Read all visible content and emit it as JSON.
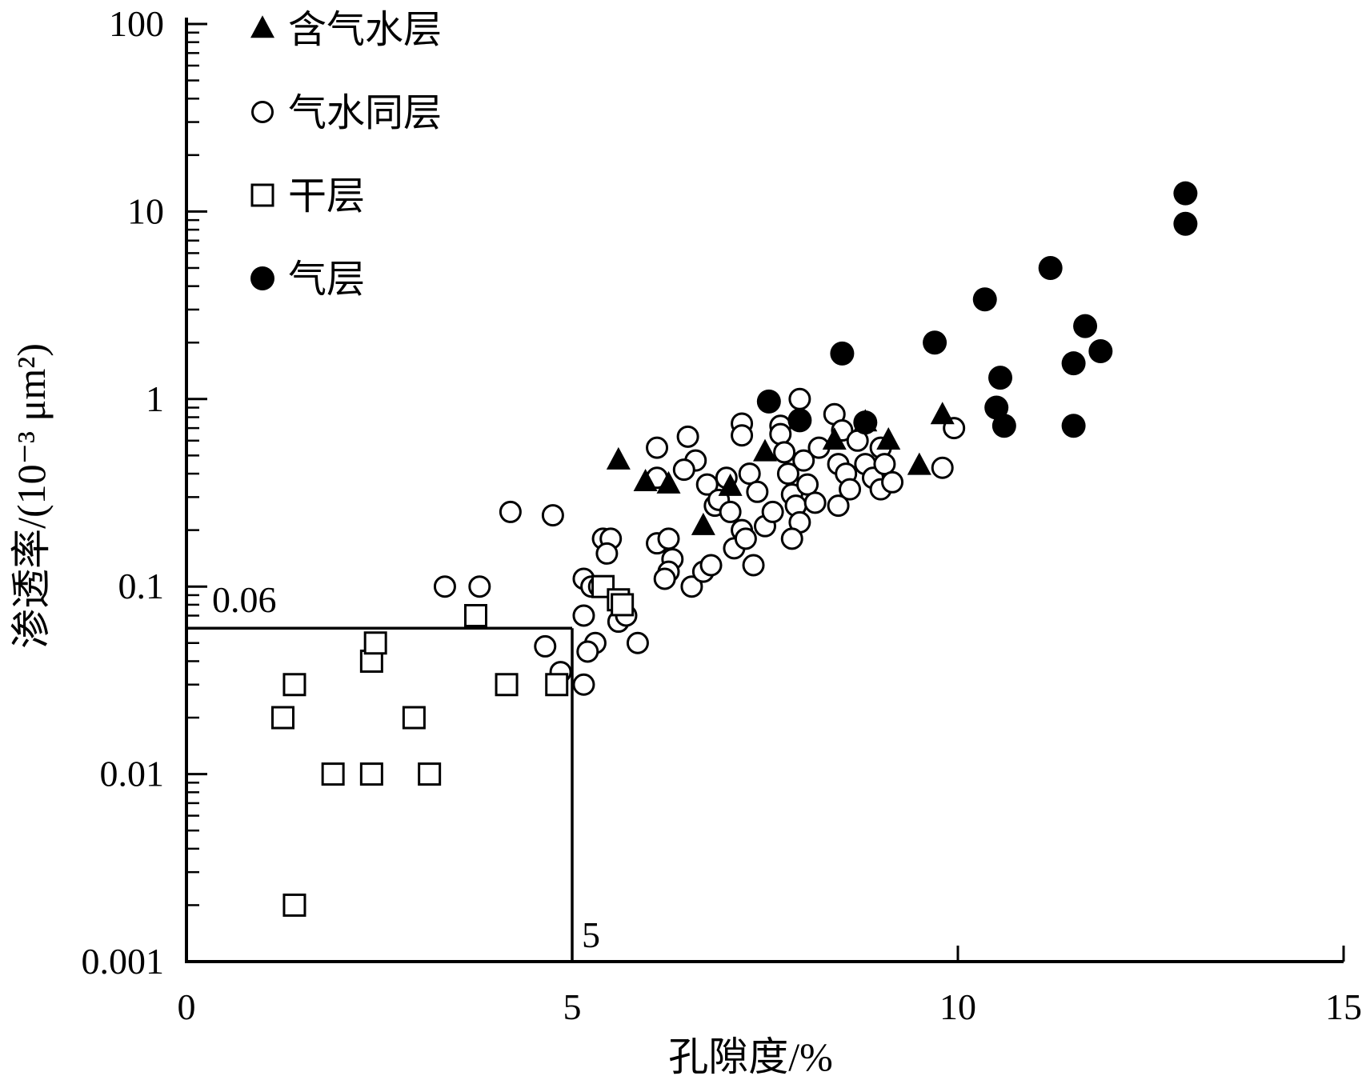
{
  "chart_data": {
    "type": "scatter",
    "xlabel": "孔隙度/%",
    "ylabel": "渗透率/(10⁻³ μm²)",
    "xlim": [
      0,
      15
    ],
    "ylim": [
      0.001,
      100
    ],
    "yscale": "log",
    "x_ticks": [
      "0",
      "5",
      "10",
      "15"
    ],
    "y_ticks": [
      "0.001",
      "0.01",
      "0.1",
      "1",
      "10",
      "100"
    ],
    "legend_position": "top-left",
    "reference_lines": [
      {
        "label": "0.06",
        "axis": "y",
        "value": 0.06
      },
      {
        "label": "5",
        "axis": "x",
        "value": 5
      }
    ],
    "series": [
      {
        "name": "含气水层",
        "marker": "triangle",
        "points": [
          [
            5.6,
            0.47
          ],
          [
            5.95,
            0.36
          ],
          [
            6.25,
            0.35
          ],
          [
            6.7,
            0.21
          ],
          [
            7.05,
            0.34
          ],
          [
            7.5,
            0.52
          ],
          [
            8.4,
            0.6
          ],
          [
            8.8,
            0.75
          ],
          [
            9.1,
            0.6
          ],
          [
            9.5,
            0.44
          ],
          [
            9.8,
            0.82
          ]
        ]
      },
      {
        "name": "气水同层",
        "marker": "circle-open",
        "points": [
          [
            4.2,
            0.25
          ],
          [
            4.75,
            0.24
          ],
          [
            3.35,
            0.1
          ],
          [
            3.8,
            0.1
          ],
          [
            4.65,
            0.048
          ],
          [
            4.85,
            0.035
          ],
          [
            5.15,
            0.03
          ],
          [
            5.15,
            0.11
          ],
          [
            5.25,
            0.1
          ],
          [
            5.15,
            0.07
          ],
          [
            5.35,
            0.1
          ],
          [
            5.3,
            0.05
          ],
          [
            5.2,
            0.045
          ],
          [
            5.4,
            0.18
          ],
          [
            5.5,
            0.18
          ],
          [
            5.45,
            0.15
          ],
          [
            5.6,
            0.065
          ],
          [
            5.7,
            0.07
          ],
          [
            5.85,
            0.05
          ],
          [
            6.1,
            0.55
          ],
          [
            6.1,
            0.38
          ],
          [
            6.1,
            0.17
          ],
          [
            6.25,
            0.18
          ],
          [
            6.3,
            0.14
          ],
          [
            6.25,
            0.12
          ],
          [
            6.2,
            0.11
          ],
          [
            6.5,
            0.63
          ],
          [
            6.6,
            0.47
          ],
          [
            6.45,
            0.42
          ],
          [
            6.55,
            0.1
          ],
          [
            6.7,
            0.12
          ],
          [
            6.8,
            0.13
          ],
          [
            6.75,
            0.35
          ],
          [
            6.85,
            0.27
          ],
          [
            6.9,
            0.29
          ],
          [
            7.0,
            0.38
          ],
          [
            7.05,
            0.25
          ],
          [
            7.1,
            0.16
          ],
          [
            7.2,
            0.2
          ],
          [
            7.25,
            0.18
          ],
          [
            7.2,
            0.74
          ],
          [
            7.2,
            0.64
          ],
          [
            7.3,
            0.4
          ],
          [
            7.4,
            0.32
          ],
          [
            7.5,
            0.21
          ],
          [
            7.35,
            0.13
          ],
          [
            7.6,
            0.25
          ],
          [
            7.7,
            0.72
          ],
          [
            7.7,
            0.65
          ],
          [
            7.75,
            0.52
          ],
          [
            7.8,
            0.4
          ],
          [
            7.85,
            0.31
          ],
          [
            7.9,
            0.27
          ],
          [
            7.95,
            0.22
          ],
          [
            7.85,
            0.18
          ],
          [
            7.95,
            1.0
          ],
          [
            8.0,
            0.47
          ],
          [
            8.05,
            0.35
          ],
          [
            8.15,
            0.28
          ],
          [
            8.2,
            0.55
          ],
          [
            8.4,
            0.83
          ],
          [
            8.5,
            0.68
          ],
          [
            8.45,
            0.45
          ],
          [
            8.55,
            0.4
          ],
          [
            8.6,
            0.33
          ],
          [
            8.45,
            0.27
          ],
          [
            8.7,
            0.6
          ],
          [
            8.8,
            0.45
          ],
          [
            8.9,
            0.38
          ],
          [
            9.0,
            0.55
          ],
          [
            9.05,
            0.45
          ],
          [
            9.0,
            0.33
          ],
          [
            9.15,
            0.36
          ],
          [
            9.8,
            0.43
          ],
          [
            9.95,
            0.7
          ]
        ]
      },
      {
        "name": "干层",
        "marker": "square-open",
        "points": [
          [
            1.4,
            0.002
          ],
          [
            1.25,
            0.02
          ],
          [
            1.4,
            0.03
          ],
          [
            1.9,
            0.01
          ],
          [
            2.4,
            0.01
          ],
          [
            2.4,
            0.04
          ],
          [
            2.45,
            0.05
          ],
          [
            2.95,
            0.02
          ],
          [
            3.15,
            0.01
          ],
          [
            3.75,
            0.07
          ],
          [
            4.15,
            0.03
          ],
          [
            4.8,
            0.03
          ],
          [
            5.4,
            0.1
          ],
          [
            5.6,
            0.085
          ],
          [
            5.65,
            0.08
          ]
        ]
      },
      {
        "name": "气层",
        "marker": "circle-filled",
        "points": [
          [
            7.55,
            0.97
          ],
          [
            7.95,
            0.77
          ],
          [
            8.5,
            1.75
          ],
          [
            8.8,
            0.75
          ],
          [
            9.7,
            2.0
          ],
          [
            10.35,
            3.4
          ],
          [
            10.5,
            0.9
          ],
          [
            10.55,
            1.3
          ],
          [
            10.6,
            0.72
          ],
          [
            11.2,
            5.0
          ],
          [
            11.5,
            0.72
          ],
          [
            11.5,
            1.55
          ],
          [
            11.65,
            2.45
          ],
          [
            11.85,
            1.8
          ],
          [
            12.95,
            12.5
          ],
          [
            12.95,
            8.6
          ]
        ]
      }
    ]
  }
}
